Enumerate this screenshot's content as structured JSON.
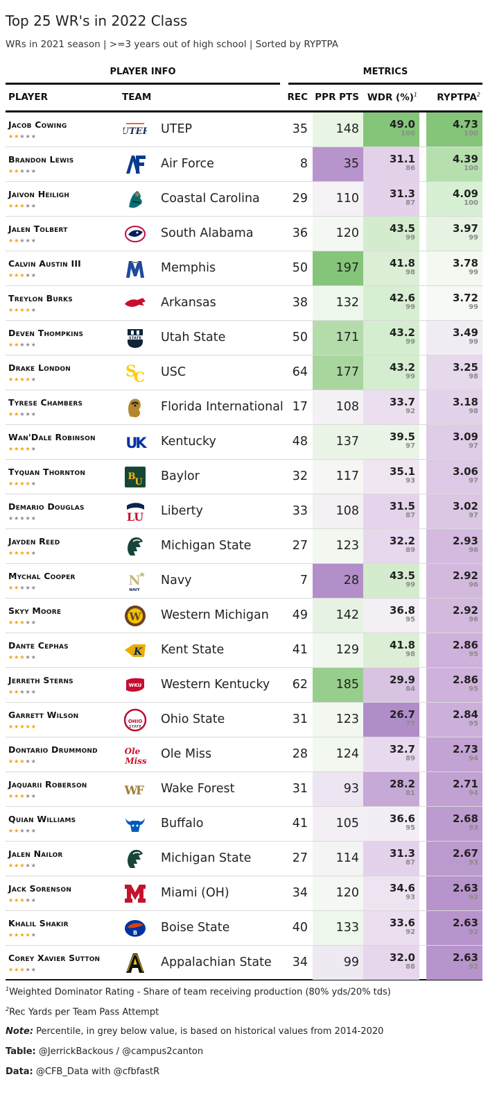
{
  "header": {
    "title": "Top 25 WR's in 2022 Class",
    "subtitle": "WRs in 2021 season | >=3 years out of high school | Sorted by RYPTPA",
    "group_player": "PLAYER INFO",
    "group_metrics": "METRICS"
  },
  "columns": {
    "player": "PLAYER",
    "team": "TEAM",
    "rec": "REC",
    "ppr": "PPR PTS",
    "wdr": "WDR (%)",
    "wdr_note": "1",
    "ryptpa": "RYPTPA",
    "ryptpa_note": "2"
  },
  "rows": [
    {
      "player": "Jacob Cowing",
      "stars": 2,
      "team": "UTEP",
      "logo": "utep-logo",
      "rec": "35",
      "ppr": "148",
      "wdr": "49.0",
      "wdr_pct": "100",
      "ryptpa": "4.73",
      "ryptpa_pct": "100",
      "ppr_color": "#e8f5e4",
      "wdr_color": "#85c57a",
      "ryp_color": "#85c57a"
    },
    {
      "player": "Brandon Lewis",
      "stars": 2,
      "team": "Air Force",
      "logo": "air-force-logo",
      "rec": "8",
      "ppr": "35",
      "wdr": "31.1",
      "wdr_pct": "86",
      "ryptpa": "4.39",
      "ryptpa_pct": "100",
      "ppr_color": "#b894cc",
      "wdr_color": "#e3d1ea",
      "ryp_color": "#b6dfae"
    },
    {
      "player": "Jaivon Heiligh",
      "stars": 3,
      "team": "Coastal Carolina",
      "logo": "coastal-carolina-logo",
      "rec": "29",
      "ppr": "110",
      "wdr": "31.3",
      "wdr_pct": "87",
      "ryptpa": "4.09",
      "ryptpa_pct": "100",
      "ppr_color": "#f4f2f5",
      "wdr_color": "#e4d2eb",
      "ryp_color": "#d7efd2"
    },
    {
      "player": "Jalen Tolbert",
      "stars": 2,
      "team": "South Alabama",
      "logo": "south-alabama-logo",
      "rec": "36",
      "ppr": "120",
      "wdr": "43.5",
      "wdr_pct": "99",
      "ryptpa": "3.97",
      "ryptpa_pct": "99",
      "ppr_color": "#f4f8f2",
      "wdr_color": "#d4eccd",
      "ryp_color": "#e6f3e2"
    },
    {
      "player": "Calvin Austin III",
      "stars": 3,
      "team": "Memphis",
      "logo": "memphis-logo",
      "rec": "50",
      "ppr": "197",
      "wdr": "41.8",
      "wdr_pct": "98",
      "ryptpa": "3.78",
      "ryptpa_pct": "99",
      "ppr_color": "#85c57a",
      "wdr_color": "#dcefd6",
      "ryp_color": "#f3f8f1"
    },
    {
      "player": "Treylon Burks",
      "stars": 4,
      "team": "Arkansas",
      "logo": "arkansas-logo",
      "rec": "38",
      "ppr": "132",
      "wdr": "42.6",
      "wdr_pct": "99",
      "ryptpa": "3.72",
      "ryptpa_pct": "99",
      "ppr_color": "#eef7ec",
      "wdr_color": "#d8eed2",
      "ryp_color": "#f6f9f5"
    },
    {
      "player": "Deven Thompkins",
      "stars": 2,
      "team": "Utah State",
      "logo": "utah-state-logo",
      "rec": "50",
      "ppr": "171",
      "wdr": "43.2",
      "wdr_pct": "99",
      "ryptpa": "3.49",
      "ryptpa_pct": "99",
      "ppr_color": "#b4dcab",
      "wdr_color": "#d5edcf",
      "ryp_color": "#f1ecf3"
    },
    {
      "player": "Drake London",
      "stars": 4,
      "team": "USC",
      "logo": "usc-logo",
      "rec": "64",
      "ppr": "177",
      "wdr": "43.2",
      "wdr_pct": "99",
      "ryptpa": "3.25",
      "ryptpa_pct": "98",
      "ppr_color": "#a8d69e",
      "wdr_color": "#d5edcf",
      "ryp_color": "#e7d9ec"
    },
    {
      "player": "Tyrese Chambers",
      "stars": 2,
      "team": "Florida International",
      "logo": "fiu-logo",
      "rec": "17",
      "ppr": "108",
      "wdr": "33.7",
      "wdr_pct": "92",
      "ryptpa": "3.18",
      "ryptpa_pct": "98",
      "ppr_color": "#f4f1f5",
      "wdr_color": "#ebdfef",
      "ryp_color": "#e3d3ea"
    },
    {
      "player": "Wan'Dale Robinson",
      "stars": 4,
      "team": "Kentucky",
      "logo": "kentucky-logo",
      "rec": "48",
      "ppr": "137",
      "wdr": "39.5",
      "wdr_pct": "97",
      "ryptpa": "3.09",
      "ryptpa_pct": "97",
      "ppr_color": "#eaf5e7",
      "wdr_color": "#eaf4e7",
      "ryp_color": "#dfcce7"
    },
    {
      "player": "Tyquan Thornton",
      "stars": 4,
      "team": "Baylor",
      "logo": "baylor-logo",
      "rec": "32",
      "ppr": "117",
      "wdr": "35.1",
      "wdr_pct": "93",
      "ryptpa": "3.06",
      "ryptpa_pct": "97",
      "ppr_color": "#f6f6f5",
      "wdr_color": "#efe6f2",
      "ryp_color": "#ddc9e5"
    },
    {
      "player": "Demario Douglas",
      "stars": 0,
      "team": "Liberty",
      "logo": "liberty-logo",
      "rec": "33",
      "ppr": "108",
      "wdr": "31.5",
      "wdr_pct": "87",
      "ryptpa": "3.02",
      "ryptpa_pct": "97",
      "ppr_color": "#f4f1f5",
      "wdr_color": "#e4d3eb",
      "ryp_color": "#dbc6e4"
    },
    {
      "player": "Jayden Reed",
      "stars": 4,
      "team": "Michigan State",
      "logo": "michigan-state-logo",
      "rec": "27",
      "ppr": "123",
      "wdr": "32.2",
      "wdr_pct": "89",
      "ryptpa": "2.93",
      "ryptpa_pct": "96",
      "ppr_color": "#f2f8f0",
      "wdr_color": "#e7d8ed",
      "ryp_color": "#d3bade"
    },
    {
      "player": "Mychal Cooper",
      "stars": 2,
      "team": "Navy",
      "logo": "navy-logo",
      "rec": "7",
      "ppr": "28",
      "wdr": "43.5",
      "wdr_pct": "99",
      "ryptpa": "2.92",
      "ryptpa_pct": "96",
      "ppr_color": "#b38fca",
      "wdr_color": "#d4eccd",
      "ryp_color": "#d3b9de"
    },
    {
      "player": "Skyy Moore",
      "stars": 3,
      "team": "Western Michigan",
      "logo": "western-michigan-logo",
      "rec": "49",
      "ppr": "142",
      "wdr": "36.8",
      "wdr_pct": "95",
      "ryptpa": "2.92",
      "ryptpa_pct": "96",
      "ppr_color": "#e6f3e3",
      "wdr_color": "#f3eff5",
      "ryp_color": "#d3b9de"
    },
    {
      "player": "Dante Cephas",
      "stars": 3,
      "team": "Kent State",
      "logo": "kent-state-logo",
      "rec": "41",
      "ppr": "129",
      "wdr": "41.8",
      "wdr_pct": "98",
      "ryptpa": "2.86",
      "ryptpa_pct": "95",
      "ppr_color": "#f0f7ee",
      "wdr_color": "#dcefd6",
      "ryp_color": "#ceb2db"
    },
    {
      "player": "Jerreth Sterns",
      "stars": 2,
      "team": "Western Kentucky",
      "logo": "western-kentucky-logo",
      "rec": "62",
      "ppr": "185",
      "wdr": "29.9",
      "wdr_pct": "84",
      "ryptpa": "2.86",
      "ryptpa_pct": "95",
      "ppr_color": "#98ce8d",
      "wdr_color": "#d8c3e2",
      "ryp_color": "#ceb2db"
    },
    {
      "player": "Garrett Wilson",
      "stars": 5,
      "team": "Ohio State",
      "logo": "ohio-state-logo",
      "rec": "31",
      "ppr": "123",
      "wdr": "26.7",
      "wdr_pct": "77",
      "ryptpa": "2.84",
      "ryptpa_pct": "95",
      "ppr_color": "#f2f8f0",
      "wdr_color": "#b08dc8",
      "ryp_color": "#ccb0da"
    },
    {
      "player": "Dontario Drummond",
      "stars": 3,
      "team": "Ole Miss",
      "logo": "ole-miss-logo",
      "rec": "28",
      "ppr": "124",
      "wdr": "32.7",
      "wdr_pct": "89",
      "ryptpa": "2.73",
      "ryptpa_pct": "94",
      "ppr_color": "#f2f8f0",
      "wdr_color": "#e8daee",
      "ryp_color": "#c2a3d3"
    },
    {
      "player": "Jaquarii Roberson",
      "stars": 3,
      "team": "Wake Forest",
      "logo": "wake-forest-logo",
      "rec": "31",
      "ppr": "93",
      "wdr": "28.2",
      "wdr_pct": "81",
      "ryptpa": "2.71",
      "ryptpa_pct": "94",
      "ppr_color": "#ede5f1",
      "wdr_color": "#c6a9d6",
      "ryp_color": "#c1a1d2"
    },
    {
      "player": "Quian Williams",
      "stars": 2,
      "team": "Buffalo",
      "logo": "buffalo-logo",
      "rec": "41",
      "ppr": "105",
      "wdr": "36.6",
      "wdr_pct": "95",
      "ryptpa": "2.68",
      "ryptpa_pct": "93",
      "ppr_color": "#f3eff5",
      "wdr_color": "#f3eef5",
      "ryp_color": "#bc9bcf"
    },
    {
      "player": "Jalen Nailor",
      "stars": 3,
      "team": "Michigan State",
      "logo": "michigan-state-logo",
      "rec": "27",
      "ppr": "114",
      "wdr": "31.3",
      "wdr_pct": "87",
      "ryptpa": "2.67",
      "ryptpa_pct": "93",
      "ppr_color": "#f5f4f5",
      "wdr_color": "#e4d2eb",
      "ryp_color": "#bb9ace"
    },
    {
      "player": "Jack Sorenson",
      "stars": 3,
      "team": "Miami (OH)",
      "logo": "miami-oh-logo",
      "rec": "34",
      "ppr": "120",
      "wdr": "34.6",
      "wdr_pct": "93",
      "ryptpa": "2.63",
      "ryptpa_pct": "92",
      "ppr_color": "#f4f8f2",
      "wdr_color": "#eee4f1",
      "ryp_color": "#b794cc"
    },
    {
      "player": "Khalil Shakir",
      "stars": 4,
      "team": "Boise State",
      "logo": "boise-state-logo",
      "rec": "40",
      "ppr": "133",
      "wdr": "33.6",
      "wdr_pct": "92",
      "ryptpa": "2.63",
      "ryptpa_pct": "92",
      "ppr_color": "#eef7ec",
      "wdr_color": "#ebdeef",
      "ryp_color": "#b794cc"
    },
    {
      "player": "Corey Xavier Sutton",
      "stars": 3,
      "team": "Appalachian State",
      "logo": "appalachian-state-logo",
      "rec": "34",
      "ppr": "99",
      "wdr": "32.0",
      "wdr_pct": "88",
      "ryptpa": "2.63",
      "ryptpa_pct": "92",
      "ppr_color": "#efe9f2",
      "wdr_color": "#e6d7ed",
      "ryp_color": "#b794cc"
    }
  ],
  "footnotes": {
    "note1_mark": "1",
    "note1": "Weighted Dominator Rating - Share of team receiving production (80% yds/20% tds)",
    "note2_mark": "2",
    "note2": "Rec Yards per Team Pass Attempt",
    "note_label": "Note:",
    "note": " Percentile, in grey below value, is based on historical values from 2014-2020",
    "table_label": "Table:",
    "table": " @JerrickBackous / @campus2canton",
    "data_label": "Data:",
    "data": " @CFB_Data with @cfbfastR"
  }
}
